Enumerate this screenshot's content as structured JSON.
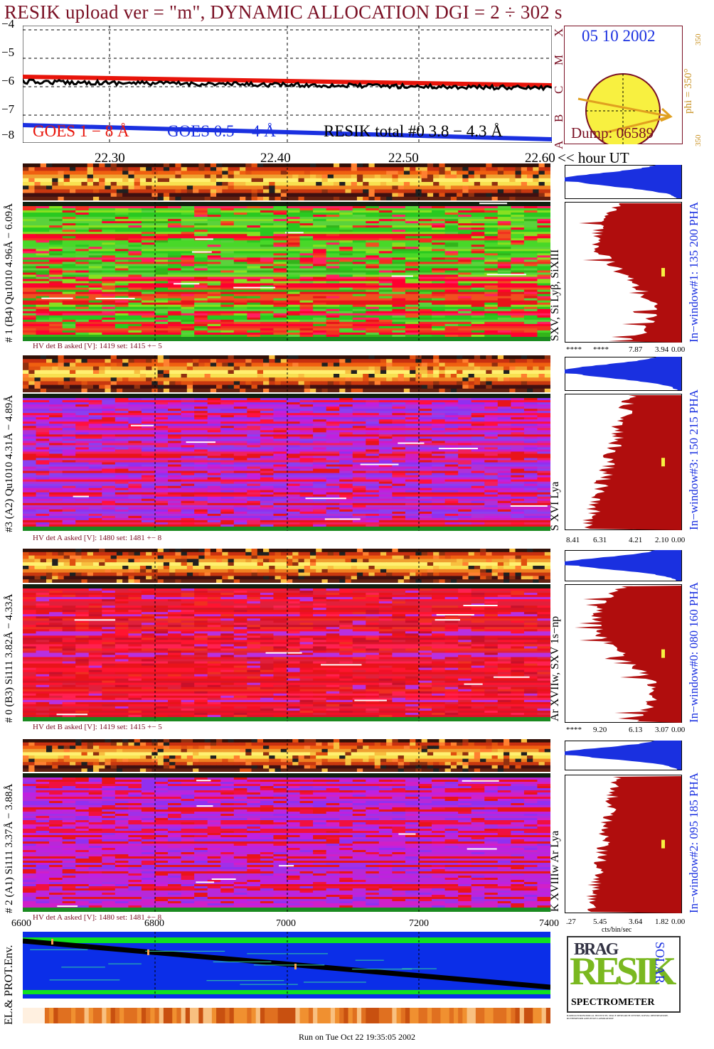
{
  "title": "RESIK upload ver = \"m\", DYNAMIC ALLOCATION  DGI =   2 ÷ 302 s",
  "lightcurve": {
    "yticks": [
      "−4",
      "−5",
      "−6",
      "−7",
      "−8"
    ],
    "goes_classes": [
      "X",
      "M",
      "C",
      "B",
      "A"
    ],
    "legend": {
      "goes_long": "GOES 1 − 8 Å",
      "goes_short": "GOES 0.5 − 4 Å",
      "resik_total": "RESIK total #0  3.8 − 4.3 Å"
    },
    "x_ticks": [
      "22.30",
      "22.40",
      "22.50",
      "22.60"
    ],
    "x_unit": "<< hour UT",
    "colors": {
      "goes_long": "#e8140a",
      "goes_short": "#1a30e0",
      "resik": "#000000"
    }
  },
  "sun_panel": {
    "date": "05 10 2002",
    "phi_label": "phi = 350°",
    "left_val": "350",
    "top_val": "350",
    "bottom_val": "350",
    "dump": "Dump: 06589",
    "disk_color": "#f8f040",
    "arrow_color": "#e0a020"
  },
  "detectors": [
    {
      "id": "det1",
      "left_label": "# 1 (B4) Qu1010 4.96Å − 6.09Å",
      "right_label": "SXV, Si Lyβ, SiXIII",
      "window_label": "In−window#1:  135 200 PHA",
      "hv": "HV det B asked [V]:  1419 set:  1415 +−    5",
      "axis": [
        "****",
        "****",
        "7.87",
        "3.94",
        "0.00"
      ],
      "palette": "green"
    },
    {
      "id": "det3",
      "left_label": "#3 (A2) Qu1010  4.31Å − 4.89Å",
      "right_label": "S XVI Lya",
      "window_label": "In−window#3:  150 215 PHA",
      "hv": "HV det A asked [V]:  1480 set:  1481 +−    8",
      "axis": [
        "8.41",
        "6.31",
        "4.21",
        "2.10",
        "0.00"
      ],
      "palette": "purple"
    },
    {
      "id": "det0",
      "left_label": "# 0 (B3) Si111  3.82Å − 4.33Å",
      "right_label": "Ar XVIIw,  SXV 1s−np",
      "window_label": "In−window#0:  080 160 PHA",
      "hv": "HV det B asked [V]:  1419 set:  1415 +−    5",
      "axis": [
        "****",
        "9.20",
        "6.13",
        "3.07",
        "0.00"
      ],
      "palette": "red"
    },
    {
      "id": "det2",
      "left_label": "# 2 (A1) Si111  3.37Å − 3.88Å",
      "right_label": "K XVIIIw  Ar Lya",
      "window_label": "In−window#2:  095 185 PHA",
      "hv": "HV det A asked [V]:  1480 set:  1481 +−    8",
      "axis": [
        ".27",
        "5.45",
        "3.64",
        "1.82",
        "0.00"
      ],
      "axis_unit": "cts/bin/sec",
      "palette": "purple2"
    }
  ],
  "env": {
    "label": "EL.& PROT.Env.",
    "x_ticks": [
      "6600",
      "6800",
      "7000",
      "7200",
      "7400"
    ]
  },
  "logo": {
    "top": "BRAG",
    "main": "RESIK",
    "side": "SOLAR",
    "bottom": "SPECTROMETER",
    "fine_print": "RADIOASTRONOMICAL INSTITUTE, SPACE RESEARCH CENTRE, ROYAL OBSERVATORY, RUTHERFORD APPLETON LABORATORY"
  },
  "footer": "Run on Tue Oct 22 19:35:05 2002"
}
